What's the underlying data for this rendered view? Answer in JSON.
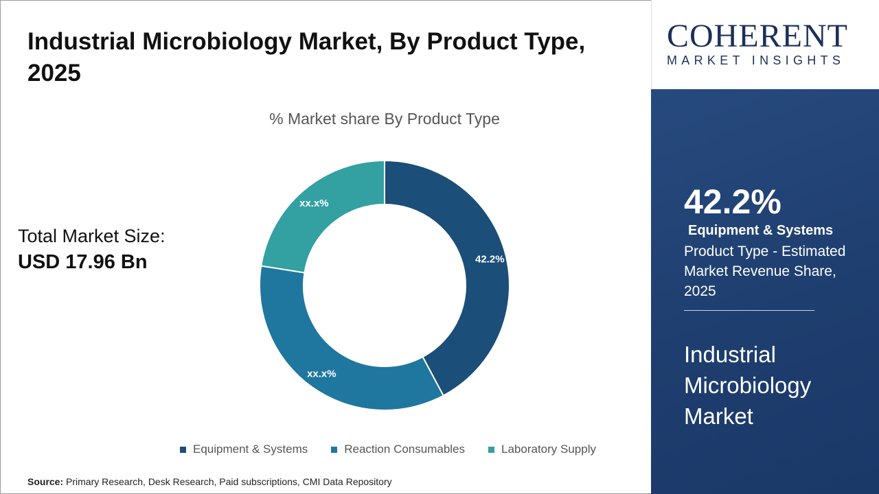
{
  "title": "Industrial Microbiology Market, By Product Type, 2025",
  "total_market": {
    "label": "Total Market Size:",
    "value": "USD 17.96 Bn"
  },
  "source": {
    "label": "Source:",
    "text": "Primary Research, Desk Research, Paid subscriptions, CMI Data Repository"
  },
  "logo": {
    "main": "COHERENT",
    "sub": "MARKET INSIGHTS"
  },
  "highlight": {
    "value": "42.2%",
    "segment": "Equipment & Systems",
    "description": "Product Type - Estimated Market Revenue Share, 2025",
    "market_name": "Industrial Microbiology Market"
  },
  "chart_data": {
    "type": "pie",
    "donut": true,
    "title": "% Market share By Product Type",
    "legend_position": "bottom",
    "slices": [
      {
        "name": "Equipment & Systems",
        "value": 42.2,
        "label": "42.2%",
        "color": "#1b4e78"
      },
      {
        "name": "Reaction Consumables",
        "value": 35.3,
        "label": "xx.x%",
        "color": "#1f77a0"
      },
      {
        "name": "Laboratory Supply",
        "value": 22.5,
        "label": "xx.x%",
        "color": "#33a0a2"
      }
    ]
  }
}
